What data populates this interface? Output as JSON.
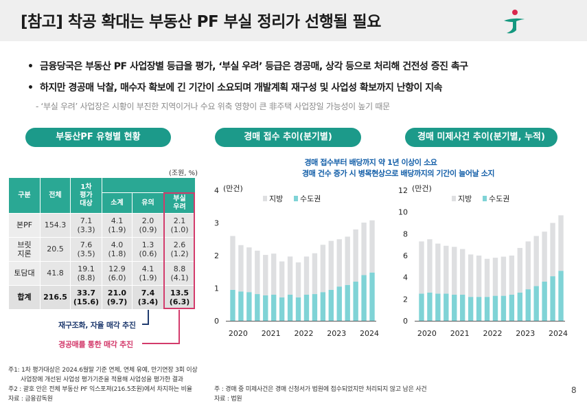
{
  "header": {
    "title": "[참고] 착공 확대는 부동산 PF 부실 정리가 선행될 필요"
  },
  "bullets": [
    "금융당국은 부동산 PF 사업장별 등급을 평가, ‘부실 우려’ 등급은 경공매, 상각 등으로 처리해 건전성 증진 촉구",
    "하지만 경공매 낙찰, 매수자 확보에 긴 기간이 소요되며 개발계획 재구성 및 사업성 확보까지 난항이 지속"
  ],
  "bullet_mark": "•",
  "subnote": "- ‘부실 우려’ 사업장은 시황이 부진한 지역이거나 수요 위축 영향이 큰 非주택 사업장일 가능성이 높기 때문",
  "panels": {
    "table_title": "부동산PF 유형별 현황",
    "auction_title": "경매 접수 추이(분기별)",
    "pending_title": "경매 미제사건 추이(분기별, 누적)"
  },
  "table": {
    "unit": "(조원, %)",
    "headers": [
      "구분",
      "전체",
      "1차\n평가\n대상",
      "소계",
      "유의",
      "부실\n우려"
    ],
    "rows": [
      {
        "label": "본PF",
        "total": "154.3",
        "first": "7.1\n(3.3)",
        "sub": "4.1\n(1.9)",
        "caution": "2.0\n(0.9)",
        "risk": "2.1\n(1.0)"
      },
      {
        "label": "브릿\n지론",
        "total": "20.5",
        "first": "7.6\n(3.5)",
        "sub": "4.0\n(1.8)",
        "caution": "1.3\n(0.6)",
        "risk": "2.6\n(1.2)"
      },
      {
        "label": "토담대",
        "total": "41.8",
        "first": "19.1\n(8.8)",
        "sub": "12.9\n(6.0)",
        "caution": "4.1\n(1.9)",
        "risk": "8.8\n(4.1)"
      },
      {
        "label": "합계",
        "total": "216.5",
        "first": "33.7\n(15.6)",
        "sub": "21.0\n(9.7)",
        "caution": "7.4\n(3.4)",
        "risk": "13.5\n(6.3)"
      }
    ]
  },
  "annotations": {
    "restructure": "재구조화, 자율 매각 추진",
    "auction": "경공매를 통한 매각 추진"
  },
  "chart_annotation": {
    "line1": "경매 접수부터 배당까지 약 1년 이상이 소요",
    "line2": "경매 건수 증가 시 병목현상으로 배당까지의 기간이 늘어날 소지"
  },
  "colors": {
    "teal": "#1c9a8a",
    "header_teal": "#2aa894",
    "magenta": "#d33a6b",
    "navy": "#1f3a6e",
    "regional": "#dedfe1",
    "capital": "#7fd3d6",
    "blue_text": "#125ea8"
  },
  "chart_data": [
    {
      "type": "bar",
      "stacked": true,
      "title": "경매 접수 추이(분기별)",
      "ylabel": "(만건)",
      "ylim": [
        0,
        4
      ],
      "yticks": [
        0,
        1,
        2,
        3,
        4
      ],
      "xticks": [
        "2020",
        "2021",
        "2022",
        "2023",
        "2024"
      ],
      "grid": false,
      "legend": "top-left",
      "series": [
        {
          "name": "수도권",
          "values": [
            0.95,
            0.9,
            0.88,
            0.82,
            0.78,
            0.8,
            0.72,
            0.8,
            0.72,
            0.8,
            0.82,
            0.88,
            0.95,
            1.05,
            1.1,
            1.2,
            1.4,
            1.48
          ]
        },
        {
          "name": "지방",
          "values": [
            1.65,
            1.42,
            1.37,
            1.33,
            1.24,
            1.26,
            1.1,
            1.17,
            1.07,
            1.17,
            1.25,
            1.45,
            1.5,
            1.45,
            1.48,
            1.6,
            1.61,
            1.6
          ]
        }
      ]
    },
    {
      "type": "bar",
      "stacked": true,
      "title": "경매 미제사건 추이(분기별, 누적)",
      "ylabel": "(만건)",
      "ylim": [
        0,
        12
      ],
      "yticks": [
        0,
        2,
        4,
        6,
        8,
        10,
        12
      ],
      "xticks": [
        "2020",
        "2021",
        "2022",
        "2023",
        "2024"
      ],
      "grid": false,
      "legend": "top-left",
      "series": [
        {
          "name": "수도권",
          "values": [
            2.5,
            2.6,
            2.5,
            2.5,
            2.4,
            2.4,
            2.2,
            2.2,
            2.2,
            2.3,
            2.3,
            2.4,
            2.6,
            2.9,
            3.2,
            3.6,
            4.1,
            4.6
          ]
        },
        {
          "name": "지방",
          "values": [
            4.8,
            4.9,
            4.6,
            4.4,
            4.4,
            4.2,
            3.9,
            3.8,
            3.5,
            3.5,
            3.6,
            3.6,
            4.1,
            4.4,
            4.6,
            4.6,
            4.9,
            5.1
          ]
        }
      ]
    }
  ],
  "footnotes": {
    "left1": "주1: 1차 평가대상은 2024.6월말 기준 연체, 연체 유예, 만기연장 3회 이상",
    "left2": "사업장에 개선된 사업성 평가기준을 적용해 사업성을 평가한 결과",
    "left3": "주2 : 괄호 안은 전체 부동산 PF 익스포져(216.5조원)에서 차지하는 비율",
    "left4": "자료 : 금융감독원",
    "right1": "주 : 경매 중 미제사건은 경매 신청서가 법원에 접수되었지만 처리되지 않고 남은 사건",
    "right2": "자료 : 법원"
  },
  "page_number": "8"
}
